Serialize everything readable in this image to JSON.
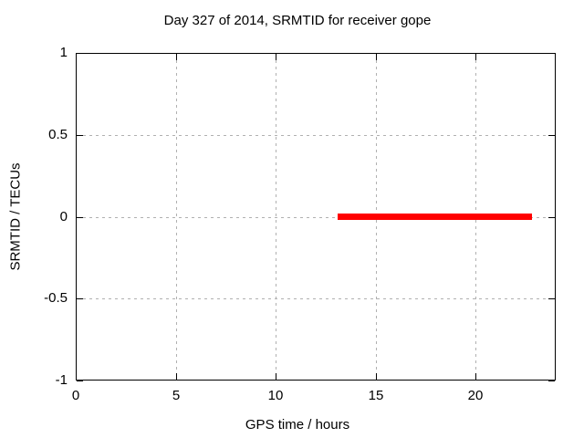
{
  "chart_data": {
    "type": "line",
    "title": "Day 327 of 2014, SRMTID for receiver gope",
    "xlabel": "GPS time / hours",
    "ylabel": "SRMTID / TECUs",
    "xlim": [
      0,
      24
    ],
    "ylim": [
      -1,
      1
    ],
    "xticks": [
      0,
      5,
      10,
      15,
      20
    ],
    "yticks": [
      -1,
      -0.5,
      0,
      0.5,
      1
    ],
    "grid": true,
    "legend": "none",
    "series": [
      {
        "name": "SRMTID",
        "color": "#ff0000",
        "line_width": 7,
        "points": [
          [
            13.1,
            0
          ],
          [
            22.8,
            0
          ]
        ]
      }
    ]
  },
  "colors": {
    "background": "#ffffff",
    "axis_border": "#000000",
    "grid": "#b0b0b0",
    "text": "#000000",
    "series_red": "#ff0000"
  }
}
